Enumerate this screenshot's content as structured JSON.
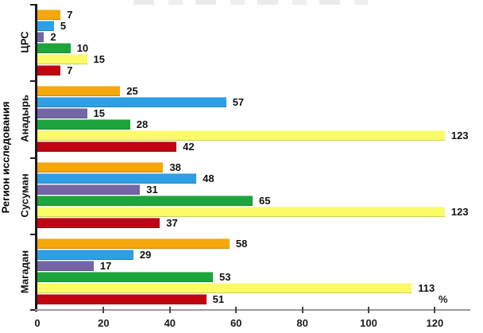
{
  "chart_data": {
    "type": "bar",
    "orientation": "horizontal",
    "title": "",
    "xlabel": "%",
    "ylabel": "Регион исследования",
    "categories_top_to_bottom": [
      "ЦРС",
      "Анадырь",
      "Сусуман",
      "Магадан"
    ],
    "series": [
      {
        "name": "series-orange",
        "color": "#F5A70B",
        "values": [
          7,
          25,
          38,
          58
        ]
      },
      {
        "name": "series-blue",
        "color": "#2E9FE4",
        "values": [
          5,
          57,
          48,
          29
        ]
      },
      {
        "name": "series-purple",
        "color": "#7466A5",
        "values": [
          2,
          15,
          31,
          17
        ]
      },
      {
        "name": "series-green",
        "color": "#1EA43C",
        "values": [
          10,
          28,
          65,
          53
        ]
      },
      {
        "name": "series-yellow",
        "color": "#FBFB68",
        "values": [
          15,
          123,
          123,
          113
        ]
      },
      {
        "name": "series-darkred",
        "color": "#C00511",
        "values": [
          7,
          42,
          37,
          51
        ]
      }
    ],
    "xlim": [
      0,
      130
    ],
    "xticks": [
      0,
      20,
      40,
      60,
      80,
      100,
      120
    ],
    "grid": false,
    "legend": "none",
    "value_labels": true
  }
}
